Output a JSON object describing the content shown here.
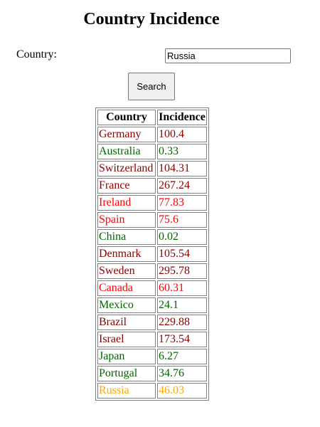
{
  "page": {
    "title": "Country Incidence"
  },
  "form": {
    "country_label": "Country:",
    "country_value": "Russia",
    "search_label": "Search"
  },
  "table": {
    "headers": [
      "Country",
      "Incidence"
    ],
    "rows": [
      {
        "country": "Germany",
        "incidence": "100.4",
        "color": "#8b0000"
      },
      {
        "country": "Australia",
        "incidence": "0.33",
        "color": "#006400"
      },
      {
        "country": "Switzerland",
        "incidence": "104.31",
        "color": "#8b0000"
      },
      {
        "country": "France",
        "incidence": "267.24",
        "color": "#8b0000"
      },
      {
        "country": "Ireland",
        "incidence": "77.83",
        "color": "#ff0000"
      },
      {
        "country": "Spain",
        "incidence": "75.6",
        "color": "#ff0000"
      },
      {
        "country": "China",
        "incidence": "0.02",
        "color": "#006400"
      },
      {
        "country": "Denmark",
        "incidence": "105.54",
        "color": "#8b0000"
      },
      {
        "country": "Sweden",
        "incidence": "295.78",
        "color": "#8b0000"
      },
      {
        "country": "Canada",
        "incidence": "60.31",
        "color": "#ff0000"
      },
      {
        "country": "Mexico",
        "incidence": "24.1",
        "color": "#006400"
      },
      {
        "country": "Brazil",
        "incidence": "229.88",
        "color": "#8b0000"
      },
      {
        "country": "Israel",
        "incidence": "173.54",
        "color": "#8b0000"
      },
      {
        "country": "Japan",
        "incidence": "6.27",
        "color": "#006400"
      },
      {
        "country": "Portugal",
        "incidence": "34.76",
        "color": "#006400"
      },
      {
        "country": "Russia",
        "incidence": "46.03",
        "color": "#ffa500"
      }
    ]
  }
}
